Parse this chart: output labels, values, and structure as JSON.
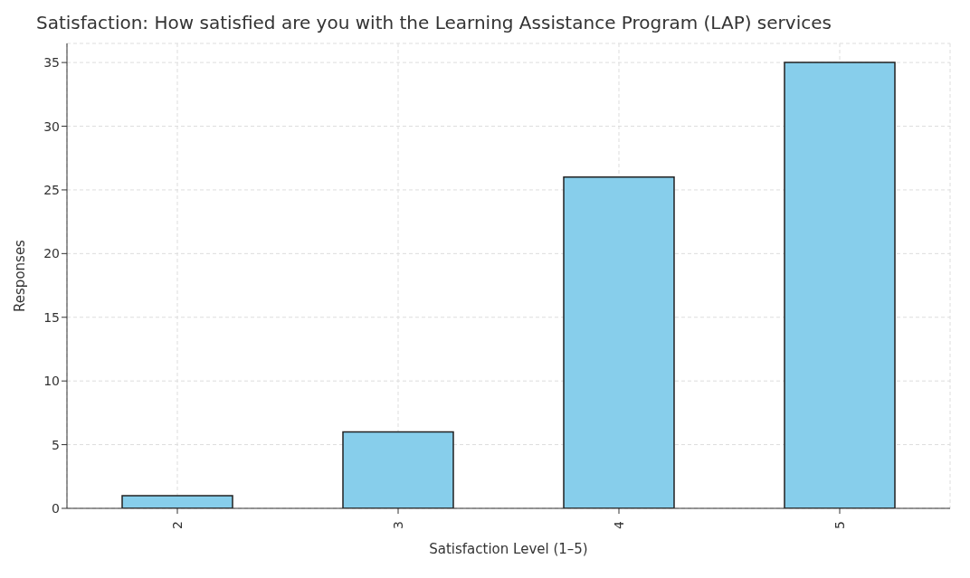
{
  "chart_data": {
    "type": "bar",
    "title": "Satisfaction: How satisfied are you with the Learning Assistance Program (LAP) services",
    "xlabel": "Satisfaction Level (1–5)",
    "ylabel": "Responses",
    "categories": [
      "2",
      "3",
      "4",
      "5"
    ],
    "values": [
      1,
      6,
      26,
      35
    ],
    "color": "#87ceeb",
    "ylim": [
      0,
      36.5
    ],
    "yticks": [
      0,
      5,
      10,
      15,
      20,
      25,
      30,
      35
    ],
    "grid": true
  }
}
